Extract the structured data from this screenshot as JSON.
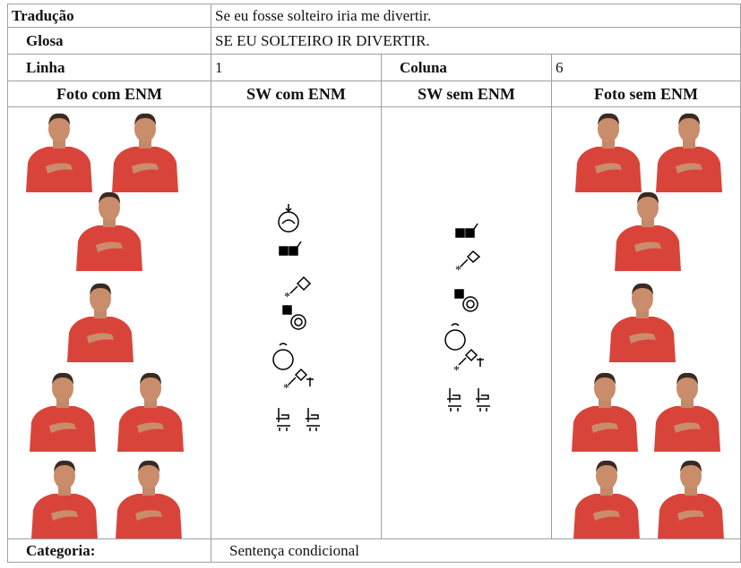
{
  "traducao": {
    "label": "Tradução",
    "text": "Se eu fosse solteiro iria me divertir."
  },
  "glosa": {
    "label": "Glosa",
    "text": "SE EU SOLTEIRO IR DIVERTIR."
  },
  "linha": {
    "label": "Linha",
    "value": 1
  },
  "coluna": {
    "label": "Coluna",
    "value": 6
  },
  "headers": [
    "Foto com ENM",
    "SW com ENM",
    "SW sem ENM",
    "Foto sem ENM"
  ],
  "categoria": {
    "label": "Categoria:",
    "text": "Sentença condicional"
  }
}
